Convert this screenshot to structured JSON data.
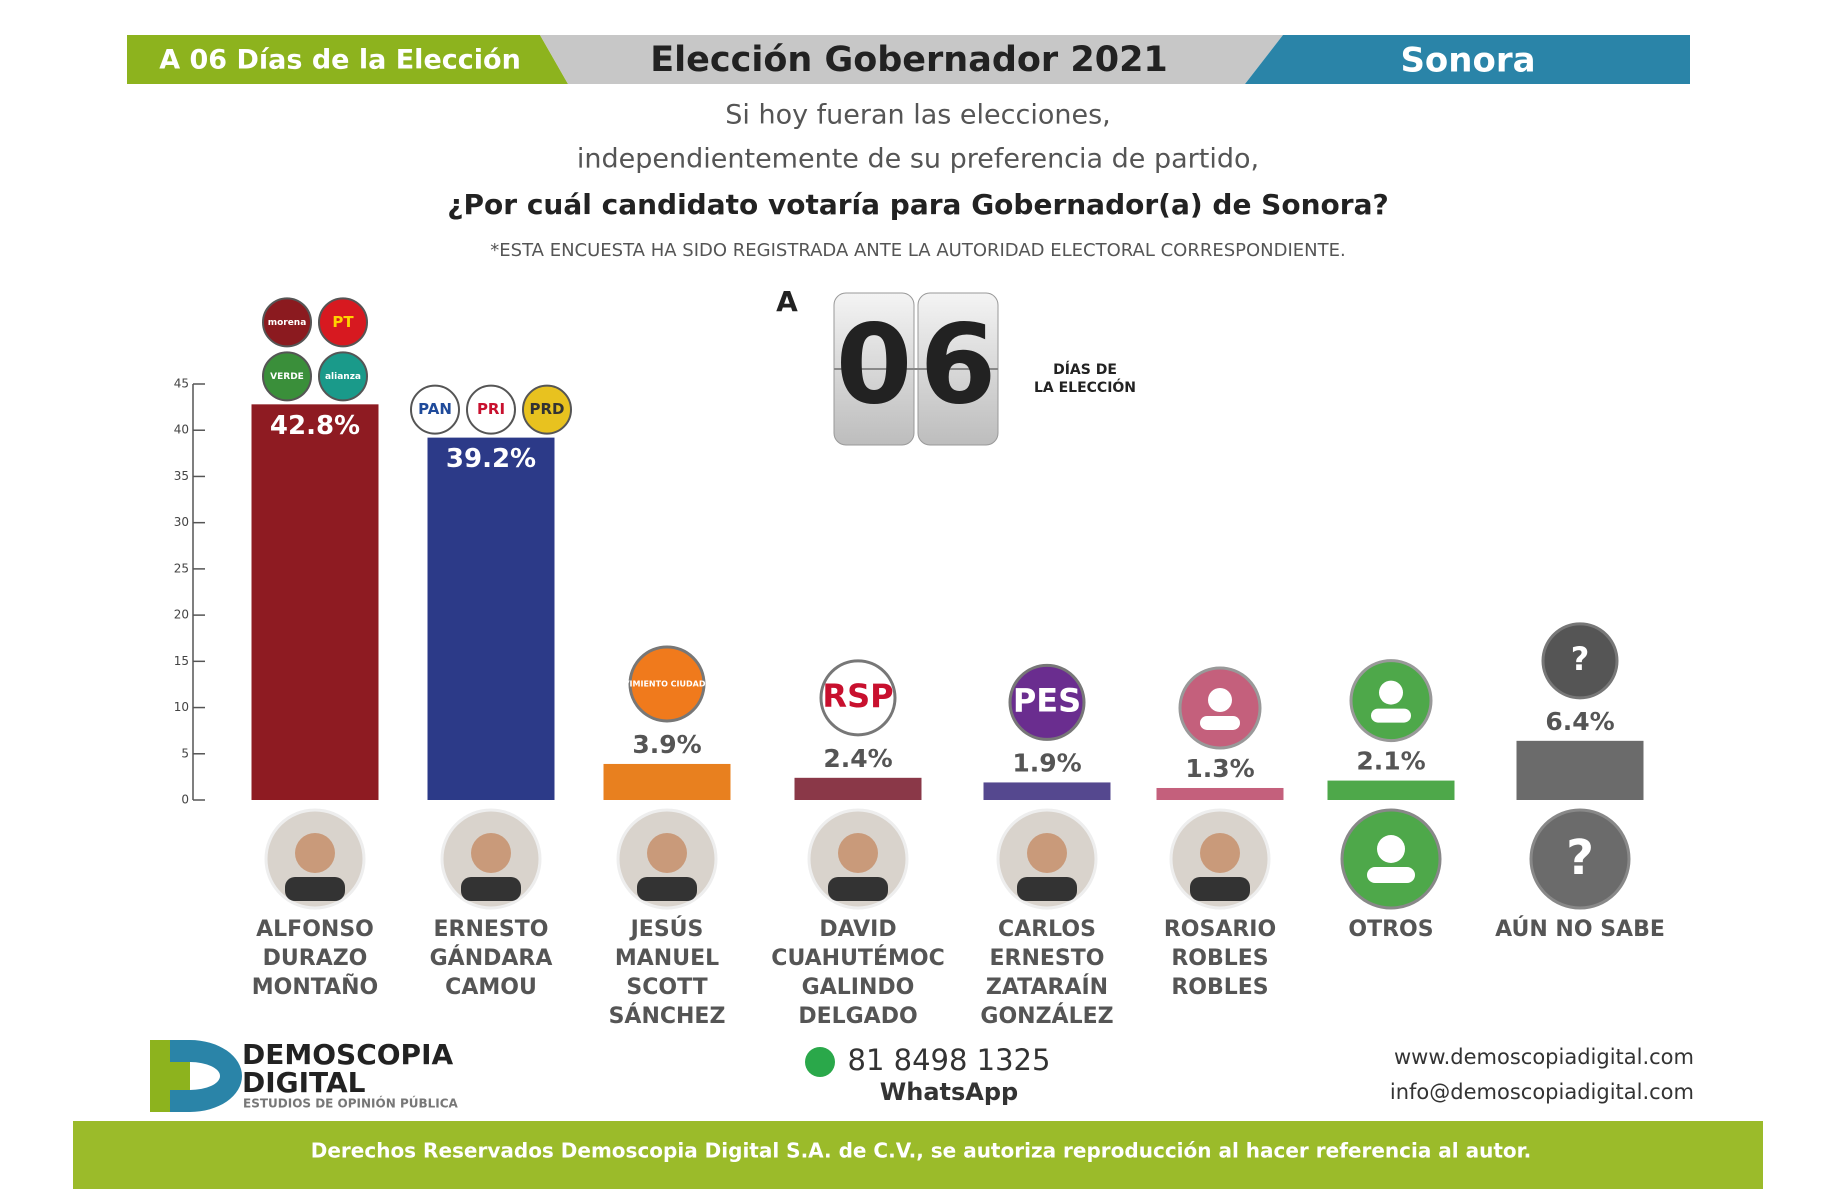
{
  "header": {
    "left": "A 06 Días de la Elección",
    "title": "Elección Gobernador 2021",
    "right": "Sonora"
  },
  "question": [
    "Si hoy fueran las elecciones,",
    "independientemente de su preferencia de partido,",
    "¿Por cuál candidato votaría para Gobernador(a) de Sonora?"
  ],
  "note": "*ESTA ENCUESTA HA SIDO REGISTRADA ANTE LA AUTORIDAD ELECTORAL CORRESPONDIENTE.",
  "countdown": {
    "prefix": "A",
    "digits": [
      "0",
      "6"
    ],
    "label": [
      "DÍAS DE",
      "LA ELECCIÓN"
    ]
  },
  "chart_data": {
    "type": "bar",
    "categories": [
      "ALFONSO DURAZO MONTAÑO",
      "ERNESTO GÁNDARA CAMOU",
      "JESÚS MANUEL SCOTT SÁNCHEZ",
      "DAVID CUAHUTÉMOC GALINDO DELGADO",
      "CARLOS ERNESTO ZATARAÍN GONZÁLEZ",
      "ROSARIO ROBLES ROBLES",
      "OTROS",
      "AÚN NO SABE"
    ],
    "values": [
      42.8,
      39.2,
      3.9,
      2.4,
      1.9,
      1.3,
      2.1,
      6.4
    ],
    "value_labels": [
      "42.8%",
      "39.2%",
      "3.9%",
      "2.4%",
      "1.9%",
      "1.3%",
      "2.1%",
      "6.4%"
    ],
    "colors": [
      "#8e1b22",
      "#2c3a88",
      "#e8801f",
      "#8a3848",
      "#55488f",
      "#c4607c",
      "#4ea84a",
      "#6b6b6b"
    ],
    "logos": [
      [
        "morena",
        "PT",
        "VERDE",
        "alianza"
      ],
      [
        "PAN",
        "PRI",
        "PRD"
      ],
      [
        "MOVIMIENTO CIUDADANO"
      ],
      [
        "RSP"
      ],
      [
        "PES"
      ],
      [],
      [],
      [
        "?"
      ]
    ],
    "ylim": [
      0,
      45
    ],
    "yticks": [
      0,
      5,
      10,
      15,
      20,
      25,
      30,
      35,
      40,
      45
    ]
  },
  "footer": {
    "brand": "DEMOSCOPIA",
    "brand2": "DIGITAL",
    "tagline": "ESTUDIOS DE OPINIÓN PÚBLICA",
    "phone": "81 8498 1325",
    "app": "WhatsApp",
    "web": "www.demoscopiadigital.com",
    "email": "info@demoscopiadigital.com",
    "copyright": "Derechos Reservados Demoscopia Digital S.A. de C.V., se autoriza reproducción al hacer referencia al autor."
  }
}
